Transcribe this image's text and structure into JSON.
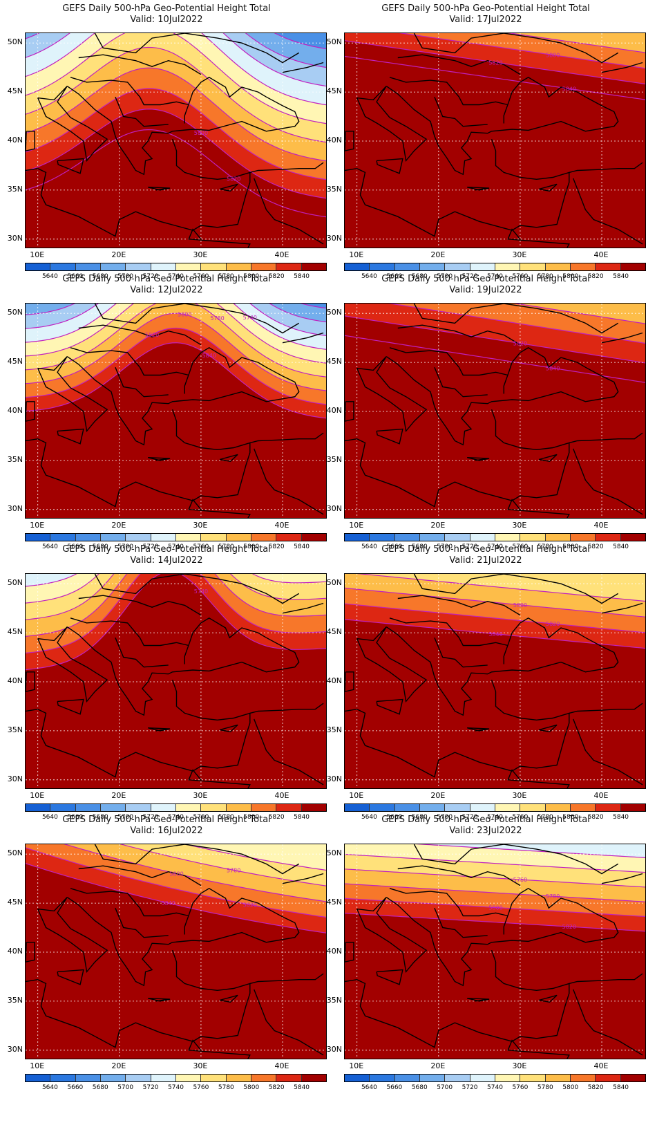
{
  "panels": [
    {
      "title": "GEFS Daily 500-hPa Geo-Potential Height Total",
      "valid": "Valid: 10Jul2022",
      "contour_labels": [
        "5800",
        "5820"
      ]
    },
    {
      "title": "GEFS Daily 500-hPa Geo-Potential Height Total",
      "valid": "Valid: 17Jul2022",
      "contour_labels": [
        "5780",
        "5800",
        "5820",
        "5840"
      ]
    },
    {
      "title": "GEFS Daily 500-hPa Geo-Potential Height Total",
      "valid": "Valid: 12Jul2022",
      "contour_labels": [
        "5680",
        "5700",
        "5720",
        "5740",
        "5760",
        "5780",
        "5800",
        "5820",
        "5840"
      ]
    },
    {
      "title": "GEFS Daily 500-hPa Geo-Potential Height Total",
      "valid": "Valid: 19Jul2022",
      "contour_labels": [
        "5820",
        "5840"
      ]
    },
    {
      "title": "GEFS Daily 500-hPa Geo-Potential Height Total",
      "valid": "Valid: 14Jul2022",
      "contour_labels": [
        "5740"
      ]
    },
    {
      "title": "GEFS Daily 500-hPa Geo-Potential Height Total",
      "valid": "Valid: 21Jul2022",
      "contour_labels": [
        "5800",
        "5820",
        "5840"
      ]
    },
    {
      "title": "GEFS Daily 500-hPa Geo-Potential Height Total",
      "valid": "Valid: 16Jul2022",
      "contour_labels": [
        "5760",
        "5780",
        "5800",
        "5820",
        "5840"
      ]
    },
    {
      "title": "GEFS Daily 500-hPa Geo-Potential Height Total",
      "valid": "Valid: 23Jul2022",
      "contour_labels": [
        "5760",
        "5780",
        "5800",
        "5820"
      ]
    }
  ],
  "lat_labels": [
    "50N",
    "45N",
    "40N",
    "35N",
    "30N"
  ],
  "lon_labels": [
    "10E",
    "20E",
    "30E",
    "40E"
  ],
  "colorbar": {
    "labels": [
      "5640",
      "5660",
      "5680",
      "5700",
      "5720",
      "5740",
      "5760",
      "5780",
      "5800",
      "5820",
      "5840"
    ],
    "colors": [
      "#1560d4",
      "#2b78e0",
      "#4a90e6",
      "#73aeec",
      "#a8cdf3",
      "#dff3fb",
      "#fff6b4",
      "#ffe17a",
      "#fdbd49",
      "#f7772a",
      "#dd2713",
      "#a20000"
    ]
  },
  "contour_color": "#c020c0",
  "coast_color": "#000000"
}
